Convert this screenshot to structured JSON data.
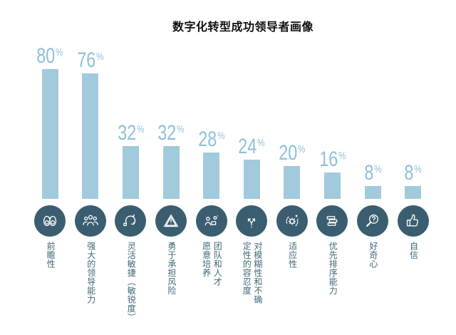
{
  "title": "数字化转型成功领导者画像",
  "colors": {
    "bar": "#a2cadd",
    "value_label": "#8fc1d7",
    "icon_circle": "#3a5e70",
    "category_label": "#41687a",
    "title": "#111111"
  },
  "chart_data": {
    "type": "bar",
    "title": "数字化转型成功领导者画像",
    "unit": "%",
    "ylim": [
      0,
      100
    ],
    "grid": false,
    "legend": "none",
    "value_labels": "above-bars",
    "categories": [
      "前瞻性",
      "强大的领导能力",
      "灵活敏捷（敏锐度）",
      "勇于承担风险",
      "团队和人才愿意培养",
      "对模糊性和不确定性的容忍度",
      "适应性",
      "优先排序能力",
      "好奇心",
      "自信"
    ],
    "values": [
      80,
      76,
      32,
      32,
      28,
      24,
      20,
      16,
      8,
      8
    ],
    "bars": [
      {
        "value": 80,
        "label_lines": [
          "前瞻性"
        ],
        "icon": "binoculars-icon"
      },
      {
        "value": 76,
        "label_lines": [
          "强大的领导能力"
        ],
        "icon": "team-leadership-icon"
      },
      {
        "value": 32,
        "label_lines": [
          "灵活敏捷（敏锐度）"
        ],
        "icon": "agile-cycle-icon"
      },
      {
        "value": 32,
        "label_lines": [
          "勇于承担风险"
        ],
        "icon": "risk-warning-icon"
      },
      {
        "value": 28,
        "label_lines": [
          "团队和人才",
          "愿意培养"
        ],
        "icon": "talent-development-icon"
      },
      {
        "value": 24,
        "label_lines": [
          "对模糊性和不确",
          "定性的容忍度"
        ],
        "icon": "branching-arrows-icon"
      },
      {
        "value": 20,
        "label_lines": [
          "适应性"
        ],
        "icon": "adaptability-gear-icon"
      },
      {
        "value": 16,
        "label_lines": [
          "优先排序能力"
        ],
        "icon": "prioritization-icon"
      },
      {
        "value": 8,
        "label_lines": [
          "好奇心"
        ],
        "icon": "curiosity-magnifier-icon"
      },
      {
        "value": 8,
        "label_lines": [
          "自信"
        ],
        "icon": "confidence-thumbs-up-icon"
      }
    ]
  }
}
